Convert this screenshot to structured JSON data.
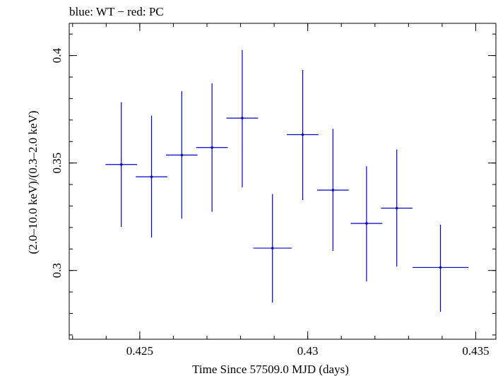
{
  "chart_data": {
    "type": "scatter",
    "title": "blue: WT − red: PC",
    "xlabel": "Time Since 57509.0 MJD (days)",
    "ylabel": "(2.0–10.0 keV)/(0.3–2.0 keV)",
    "xlim": [
      0.4229,
      0.4356
    ],
    "ylim": [
      0.268,
      0.415
    ],
    "xticks": [
      0.425,
      0.43,
      0.435
    ],
    "xtick_labels": [
      "0.425",
      "0.43",
      "0.435"
    ],
    "yticks": [
      0.3,
      0.35,
      0.4
    ],
    "ytick_labels": [
      "0.3",
      "0.35",
      "0.4"
    ],
    "grid": false,
    "series": [
      {
        "name": "WT",
        "color": "#0000cc",
        "points": [
          {
            "x": 0.42445,
            "y": 0.3493,
            "xerr": 0.00047,
            "yerr_low": 0.029,
            "yerr_high": 0.029
          },
          {
            "x": 0.42535,
            "y": 0.3436,
            "xerr": 0.00047,
            "yerr_low": 0.0283,
            "yerr_high": 0.0285
          },
          {
            "x": 0.42625,
            "y": 0.3537,
            "xerr": 0.00047,
            "yerr_low": 0.0296,
            "yerr_high": 0.0297
          },
          {
            "x": 0.42715,
            "y": 0.3572,
            "xerr": 0.00047,
            "yerr_low": 0.0299,
            "yerr_high": 0.0299
          },
          {
            "x": 0.42805,
            "y": 0.3709,
            "xerr": 0.00047,
            "yerr_low": 0.0322,
            "yerr_high": 0.0317
          },
          {
            "x": 0.42895,
            "y": 0.3104,
            "xerr": 0.00057,
            "yerr_low": 0.0253,
            "yerr_high": 0.0252
          },
          {
            "x": 0.42985,
            "y": 0.3632,
            "xerr": 0.00047,
            "yerr_low": 0.0304,
            "yerr_high": 0.0301
          },
          {
            "x": 0.43075,
            "y": 0.3374,
            "xerr": 0.00047,
            "yerr_low": 0.0283,
            "yerr_high": 0.0285
          },
          {
            "x": 0.43175,
            "y": 0.3219,
            "xerr": 0.00047,
            "yerr_low": 0.027,
            "yerr_high": 0.0266
          },
          {
            "x": 0.43265,
            "y": 0.329,
            "xerr": 0.00047,
            "yerr_low": 0.0272,
            "yerr_high": 0.0273
          },
          {
            "x": 0.43395,
            "y": 0.3014,
            "xerr": 0.00083,
            "yerr_low": 0.0206,
            "yerr_high": 0.0199
          }
        ]
      }
    ]
  }
}
